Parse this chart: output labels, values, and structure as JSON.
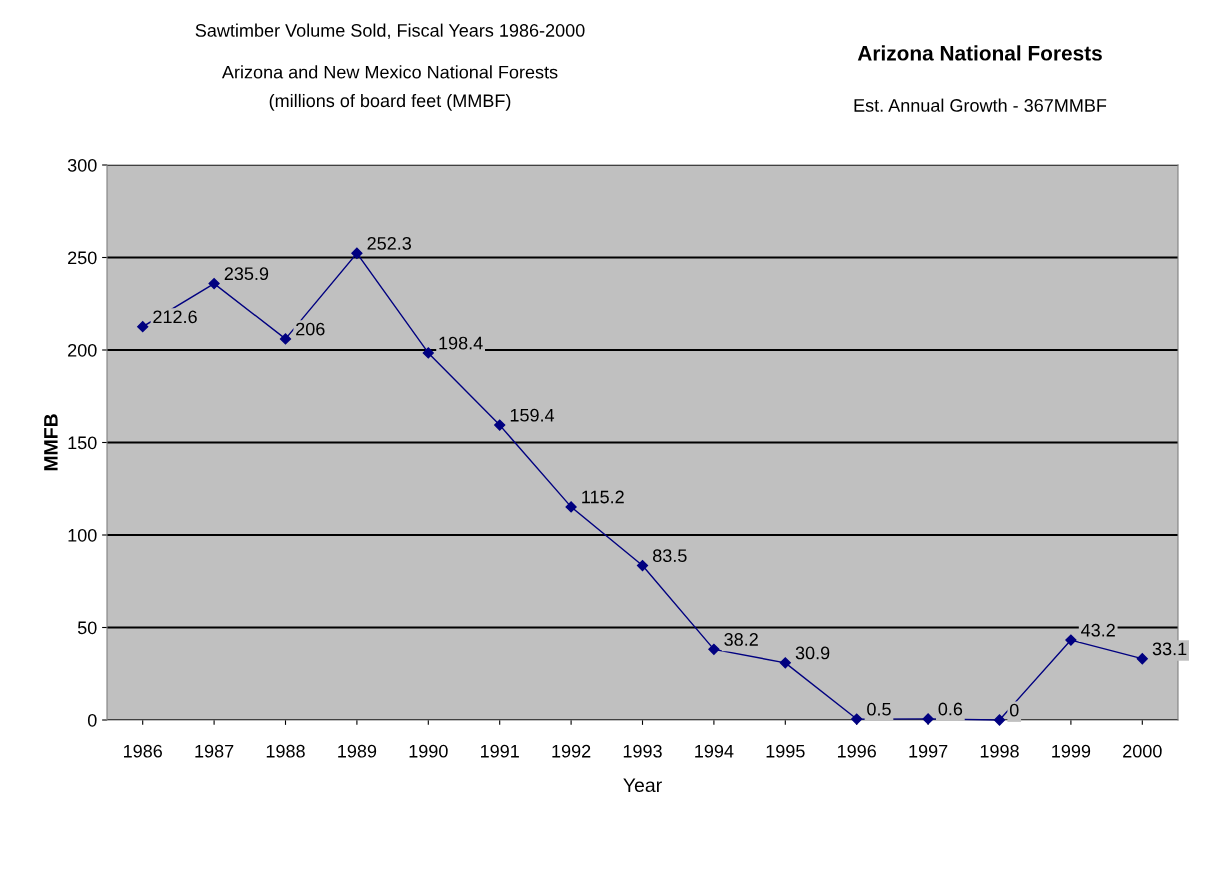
{
  "chart_data": {
    "type": "line",
    "title": "Sawtimber Volume Sold, Fiscal Years 1986-2000",
    "subtitle": "Arizona and New Mexico National Forests\n(millions of board feet (MMBF)",
    "annotations": [
      "Arizona National Forests",
      "Est. Annual Growth - 367MMBF"
    ],
    "xlabel": "Year",
    "ylabel": "MMFB",
    "categories": [
      "1986",
      "1987",
      "1988",
      "1989",
      "1990",
      "1991",
      "1992",
      "1993",
      "1994",
      "1995",
      "1996",
      "1997",
      "1998",
      "1999",
      "2000"
    ],
    "series": [
      {
        "color": "#000080",
        "values": [
          212.6,
          235.9,
          206,
          252.3,
          198.4,
          159.4,
          115.2,
          83.5,
          38.2,
          30.9,
          0.5,
          0.6,
          0,
          43.2,
          33.1
        ]
      }
    ],
    "ylim": [
      0,
      300
    ],
    "yticks": [
      0,
      50,
      100,
      150,
      200,
      250,
      300
    ],
    "grid": "y",
    "marker": "diamond",
    "line_style": "solid",
    "data_labels": true,
    "legend": false
  }
}
